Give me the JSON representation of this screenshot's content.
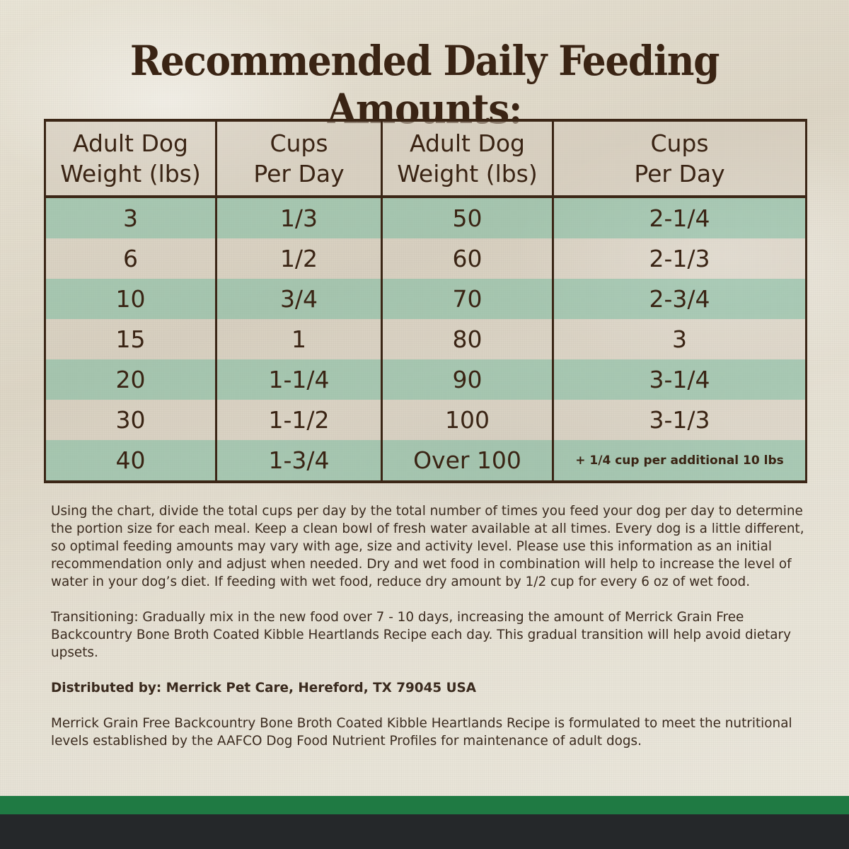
{
  "title": "Recommended Daily Feeding Amounts:",
  "table": {
    "headers": [
      {
        "line1": "Adult Dog",
        "line2": "Weight (lbs)"
      },
      {
        "line1": "Cups",
        "line2": "Per Day"
      },
      {
        "line1": "Adult Dog",
        "line2": "Weight (lbs)"
      },
      {
        "line1": "Cups",
        "line2": "Per Day"
      }
    ],
    "rows": [
      [
        "3",
        "1/3",
        "50",
        "2-1/4"
      ],
      [
        "6",
        "1/2",
        "60",
        "2-1/3"
      ],
      [
        "10",
        "3/4",
        "70",
        "2-3/4"
      ],
      [
        "15",
        "1",
        "80",
        "3"
      ],
      [
        "20",
        "1-1/4",
        "90",
        "3-1/4"
      ],
      [
        "30",
        "1-1/2",
        "100",
        "3-1/3"
      ],
      [
        "40",
        "1-3/4",
        "Over 100",
        "+ 1/4 cup per additional 10 lbs"
      ]
    ]
  },
  "paragraphs": {
    "instructions": "Using the chart, divide the total cups per day by the total number of times you feed your dog per day to determine the portion size for each meal. Keep a clean bowl of fresh water available at all times. Every dog is a little different, so optimal feeding amounts may vary with age, size and activity level. Please use this information as an initial recommendation only and adjust when needed. Dry and wet food in combination will help to increase the level of water in your dog’s diet. If feeding with wet food, reduce dry amount by 1/2 cup for every 6 oz of wet food.",
    "transitioning": "Transitioning: Gradually mix in the new food over 7 - 10 days, increasing the amount of Merrick Grain Free Backcountry Bone Broth Coated Kibble Heartlands Recipe each day. This gradual transition will help avoid dietary upsets.",
    "distributed": "Distributed by: Merrick Pet Care, Hereford, TX 79045 USA",
    "aafco": "Merrick Grain Free Backcountry Bone Broth Coated Kibble Heartlands Recipe is formulated to meet the nutritional levels established by the AAFCO Dog Food Nutrient Profiles for maintenance of adult dogs."
  },
  "colors": {
    "title": "#3a2414",
    "row_green": "#82b9a0",
    "footer_green": "#1f7a43",
    "footer_dark": "#25282a"
  }
}
